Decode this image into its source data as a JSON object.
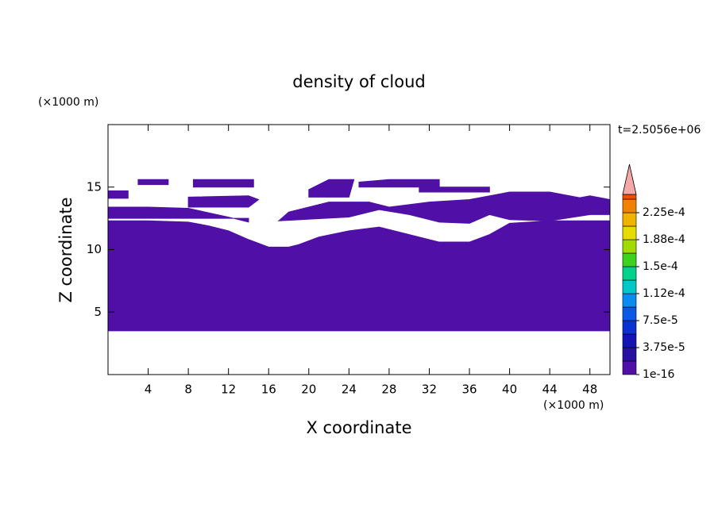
{
  "chart_data": {
    "type": "contour",
    "title": "density of cloud",
    "x_label": "X coordinate",
    "y_label": "Z coordinate",
    "x_unit": "(×1000 m)",
    "y_unit": "(×1000 m)",
    "time_label": "t=2.5056e+06",
    "xlim": [
      0,
      50
    ],
    "ylim": [
      0,
      20
    ],
    "xticks": [
      4,
      8,
      12,
      16,
      20,
      24,
      28,
      32,
      36,
      40,
      44,
      48
    ],
    "yticks": [
      5,
      10,
      15
    ],
    "fill_color": "#5010a8",
    "regions": [
      {
        "value": 1e-16,
        "x": [
          0,
          50,
          50,
          44,
          40,
          38,
          36,
          33,
          30,
          27,
          24,
          21,
          19,
          18,
          16,
          14,
          12,
          10,
          8,
          4,
          0
        ],
        "z": [
          3.5,
          3.5,
          12.3,
          12.3,
          12.1,
          11.2,
          10.6,
          10.6,
          11.2,
          11.8,
          11.5,
          11.0,
          10.4,
          10.2,
          10.2,
          10.8,
          11.5,
          11.9,
          12.2,
          12.3,
          12.3
        ]
      },
      {
        "value": 1e-16,
        "x": [
          0,
          14,
          14,
          12,
          8,
          4,
          0
        ],
        "z": [
          12.5,
          12.5,
          12.2,
          12.6,
          13.3,
          13.4,
          13.4
        ]
      },
      {
        "value": 1e-16,
        "x": [
          17,
          24,
          27,
          30,
          33,
          36,
          38,
          40,
          44,
          48,
          48,
          44,
          40,
          36,
          32,
          28,
          26,
          22,
          18
        ],
        "z": [
          12.3,
          12.6,
          13.2,
          12.8,
          12.2,
          12.1,
          12.8,
          12.4,
          12.3,
          12.8,
          14.0,
          14.6,
          14.6,
          14.0,
          13.8,
          13.4,
          13.8,
          13.8,
          13.0
        ]
      },
      {
        "value": 1e-16,
        "x": [
          43,
          50,
          50,
          48,
          46,
          43
        ],
        "z": [
          12.8,
          12.8,
          14.0,
          14.3,
          14.0,
          13.4
        ]
      },
      {
        "value": 1e-16,
        "x": [
          0,
          2,
          2,
          0
        ],
        "z": [
          14.1,
          14.1,
          14.7,
          14.7
        ]
      },
      {
        "value": 1e-16,
        "x": [
          3,
          6,
          6,
          3
        ],
        "z": [
          15.2,
          15.2,
          15.6,
          15.6
        ]
      },
      {
        "value": 1e-16,
        "x": [
          8.5,
          14.5,
          14.5,
          12,
          8.5
        ],
        "z": [
          15.0,
          15.0,
          15.6,
          15.6,
          15.6
        ]
      },
      {
        "value": 1e-16,
        "x": [
          8,
          14,
          15,
          14,
          8
        ],
        "z": [
          13.4,
          13.4,
          14.0,
          14.3,
          14.2
        ]
      },
      {
        "value": 1e-16,
        "x": [
          20,
          24,
          24.5,
          22,
          20
        ],
        "z": [
          14.2,
          14.2,
          15.6,
          15.6,
          14.8
        ]
      },
      {
        "value": 1e-16,
        "x": [
          25,
          33,
          33,
          28,
          25
        ],
        "z": [
          15.0,
          15.0,
          15.6,
          15.6,
          15.4
        ]
      },
      {
        "value": 1e-16,
        "x": [
          31,
          38,
          38,
          31
        ],
        "z": [
          14.6,
          14.6,
          15.0,
          15.0
        ]
      }
    ],
    "colorbar": {
      "colors": [
        "#5010a8",
        "#2810a0",
        "#1414b4",
        "#0a32d2",
        "#0a5ae6",
        "#0a8cf0",
        "#00c8c8",
        "#00d28c",
        "#3cd21e",
        "#a0dc00",
        "#e6dc00",
        "#f0b400",
        "#f08200",
        "#f05000",
        "#e61414"
      ],
      "over_color": "#f4a8a8",
      "labels": [
        {
          "value": 1e-16,
          "label": "1e-16"
        },
        {
          "value": 3.75e-05,
          "label": "3.75e-5"
        },
        {
          "value": 7.5e-05,
          "label": "7.5e-5"
        },
        {
          "value": 0.000112,
          "label": "1.12e-4"
        },
        {
          "value": 0.00015,
          "label": "1.5e-4"
        },
        {
          "value": 0.000188,
          "label": "1.88e-4"
        },
        {
          "value": 0.000225,
          "label": "2.25e-4"
        }
      ]
    }
  }
}
